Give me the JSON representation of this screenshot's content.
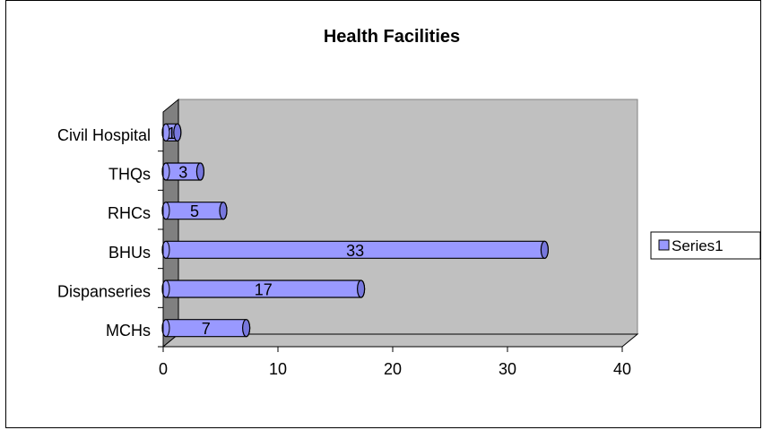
{
  "chart_data": {
    "type": "bar",
    "orientation": "horizontal",
    "style": "3d-cylinder",
    "title": "Health Facilities",
    "categories": [
      "MCHs",
      "Dispanseries",
      "BHUs",
      "RHCs",
      "THQs",
      "Civil Hospital"
    ],
    "series": [
      {
        "name": "Series1",
        "values": [
          7,
          17,
          33,
          5,
          3,
          1
        ]
      }
    ],
    "xlim": [
      0,
      40
    ],
    "xticks": [
      0,
      10,
      20,
      30,
      40
    ],
    "grid": false,
    "legend": "right",
    "colors": {
      "bar_fill": "#9999ff",
      "bar_outline": "#000000",
      "plot_wall": "#c0c0c0",
      "plot_side_wall": "#808080"
    }
  }
}
